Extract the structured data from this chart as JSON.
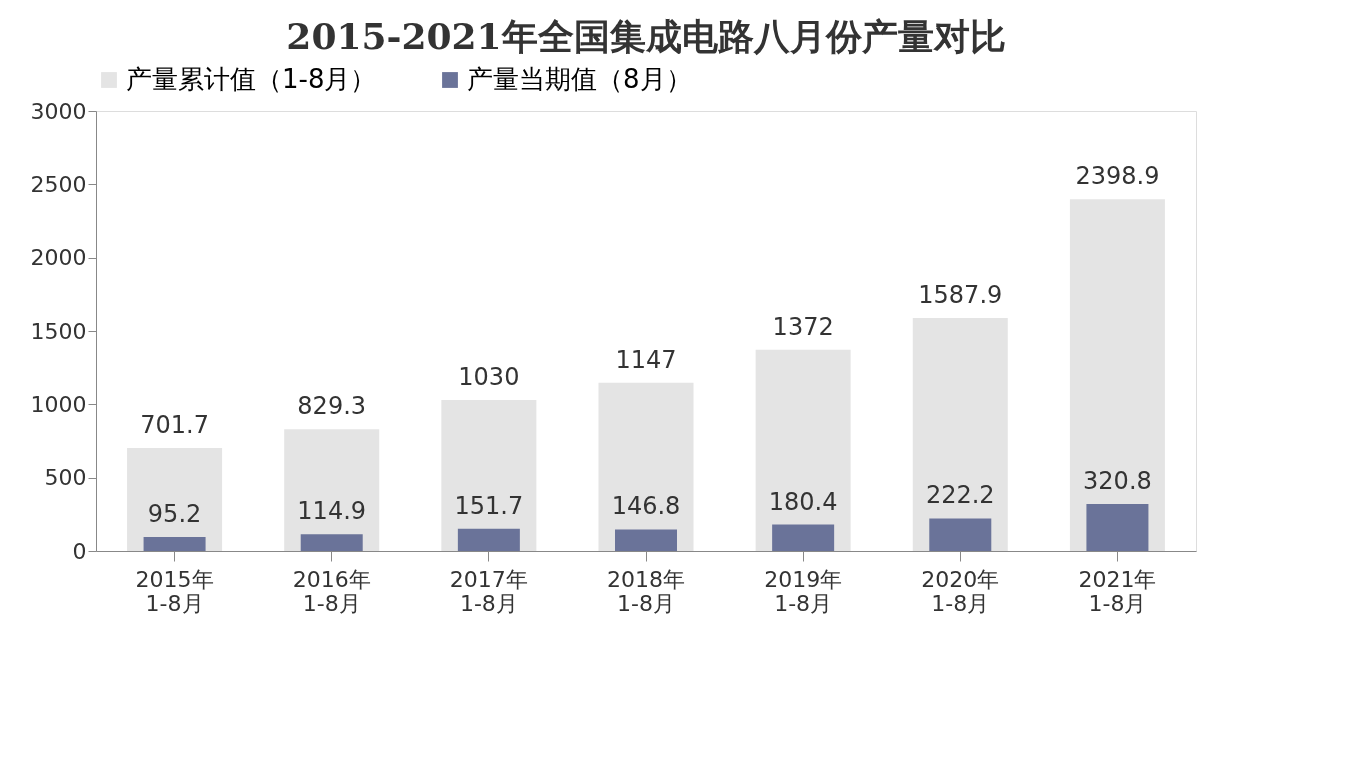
{
  "chart_data": {
    "type": "bar",
    "title": "2015-2021年全国集成电路八月份产量对比",
    "categories": [
      "2015年\n1-8月",
      "2016年\n1-8月",
      "2017年\n1-8月",
      "2018年\n1-8月",
      "2019年\n1-8月",
      "2020年\n1-8月",
      "2021年\n1-8月"
    ],
    "series": [
      {
        "name": "产量累计值（1-8月）",
        "color": "#e4e4e4",
        "values": [
          701.7,
          829.3,
          1030,
          1147,
          1372,
          1587.9,
          2398.9
        ]
      },
      {
        "name": "产量当期值（8月）",
        "color": "#6a7399",
        "values": [
          95.2,
          114.9,
          151.7,
          146.8,
          180.4,
          222.2,
          320.8
        ]
      }
    ],
    "ylim": [
      0,
      3000
    ],
    "yticks": [
      0,
      500,
      1000,
      1500,
      2000,
      2500,
      3000
    ],
    "grid": false,
    "legend": "top",
    "data_labels": true
  }
}
